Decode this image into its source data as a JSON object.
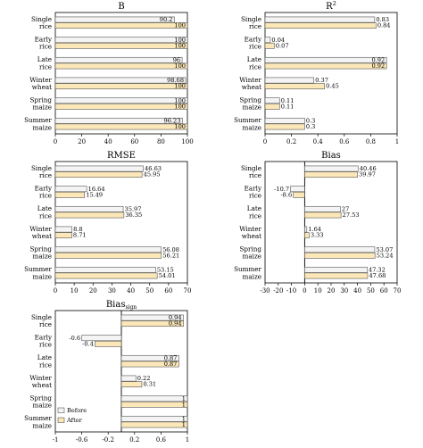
{
  "colors": {
    "before": "#f4f4f4",
    "after": "#fbe7b8",
    "stroke": "#555555"
  },
  "legend": {
    "before": "Before",
    "after": "After"
  },
  "chart_data": [
    {
      "type": "bar",
      "orientation": "horizontal",
      "title": "B",
      "title_sub": "",
      "categories": [
        "Single rice",
        "Early rice",
        "Late rice",
        "Winter wheat",
        "Spring maize",
        "Summer maize"
      ],
      "cat_lines": [
        [
          "Single",
          "rice"
        ],
        [
          "Early",
          "rice"
        ],
        [
          "Late",
          "rice"
        ],
        [
          "Winter",
          "wheat"
        ],
        [
          "Spring",
          "maize"
        ],
        [
          "Summer",
          "maize"
        ]
      ],
      "xlim": [
        0,
        100
      ],
      "xticks": [
        0,
        20,
        40,
        60,
        80,
        100
      ],
      "series": [
        {
          "name": "Before",
          "values": [
            90.2,
            100,
            96,
            98.68,
            100,
            96.23
          ],
          "labels": [
            "90.2",
            "100",
            "96",
            "98.68",
            "100",
            "96.23"
          ]
        },
        {
          "name": "After",
          "values": [
            100,
            100,
            100,
            100,
            100,
            100
          ],
          "labels": [
            "100",
            "100",
            "100",
            "100",
            "100",
            "100"
          ]
        }
      ]
    },
    {
      "type": "bar",
      "orientation": "horizontal",
      "title": "R",
      "title_sup": "2",
      "title_sub": "",
      "categories": [
        "Single rice",
        "Early rice",
        "Late rice",
        "Winter wheat",
        "Spring maize",
        "Summer maize"
      ],
      "cat_lines": [
        [
          "Single",
          "rice"
        ],
        [
          "Early",
          "rice"
        ],
        [
          "Late",
          "rice"
        ],
        [
          "Winter",
          "wheat"
        ],
        [
          "Spring",
          "maize"
        ],
        [
          "Summer",
          "maize"
        ]
      ],
      "xlim": [
        0,
        1
      ],
      "xticks": [
        0,
        0.2,
        0.4,
        0.6,
        0.8,
        1
      ],
      "xtick_labels": [
        "0",
        "0.2",
        "0.4",
        "0.6",
        "0.8",
        "1"
      ],
      "series": [
        {
          "name": "Before",
          "values": [
            0.83,
            0.04,
            0.92,
            0.37,
            0.11,
            0.3
          ],
          "labels": [
            "0.83",
            "0.04",
            "0.92",
            "0.37",
            "0.11",
            "0.3"
          ]
        },
        {
          "name": "After",
          "values": [
            0.84,
            0.07,
            0.92,
            0.45,
            0.11,
            0.3
          ],
          "labels": [
            "0.84",
            "0.07",
            "0.92",
            "0.45",
            "0.11",
            "0.3"
          ]
        }
      ]
    },
    {
      "type": "bar",
      "orientation": "horizontal",
      "title": "RMSE",
      "title_sub": "",
      "categories": [
        "Single rice",
        "Early rice",
        "Late rice",
        "Winter wheat",
        "Spring maize",
        "Summer maize"
      ],
      "cat_lines": [
        [
          "Single",
          "rice"
        ],
        [
          "Early",
          "rice"
        ],
        [
          "Late",
          "rice"
        ],
        [
          "Winter",
          "wheat"
        ],
        [
          "Spring",
          "maize"
        ],
        [
          "Summer",
          "maize"
        ]
      ],
      "xlim": [
        0,
        70
      ],
      "xticks": [
        0,
        10,
        20,
        30,
        40,
        50,
        60,
        70
      ],
      "series": [
        {
          "name": "Before",
          "values": [
            46.63,
            16.64,
            35.97,
            8.8,
            56.08,
            53.15
          ],
          "labels": [
            "46.63",
            "16.64",
            "35.97",
            "8.8",
            "56.08",
            "53.15"
          ]
        },
        {
          "name": "After",
          "values": [
            45.95,
            15.49,
            36.35,
            8.71,
            56.21,
            54.01
          ],
          "labels": [
            "45.95",
            "15.49",
            "36.35",
            "8.71",
            "56.21",
            "54.01"
          ]
        }
      ]
    },
    {
      "type": "bar",
      "orientation": "horizontal",
      "title": "Bias",
      "title_sub": "",
      "categories": [
        "Single rice",
        "Early rice",
        "Late rice",
        "Winter wheat",
        "Spring maize",
        "Summer maize"
      ],
      "cat_lines": [
        [
          "Single",
          "rice"
        ],
        [
          "Early",
          "rice"
        ],
        [
          "Late",
          "rice"
        ],
        [
          "Winter",
          "wheat"
        ],
        [
          "Spring",
          "maize"
        ],
        [
          "Summer",
          "maize"
        ]
      ],
      "xlim": [
        -30,
        70
      ],
      "xticks": [
        -30,
        -20,
        -10,
        0,
        10,
        20,
        30,
        40,
        50,
        60,
        70
      ],
      "series": [
        {
          "name": "Before",
          "values": [
            40.46,
            -10.7,
            27,
            1.64,
            53.07,
            47.32
          ],
          "labels": [
            "40.46",
            "-10.7",
            "27",
            "1.64",
            "53.07",
            "47.32"
          ]
        },
        {
          "name": "After",
          "values": [
            39.97,
            -8.6,
            27.53,
            3.33,
            53.24,
            47.68
          ],
          "labels": [
            "39.97",
            "-8.6",
            "27.53",
            "3.33",
            "53.24",
            "47.68"
          ]
        }
      ]
    },
    {
      "type": "bar",
      "orientation": "horizontal",
      "title": "Bias",
      "title_sub": "sign",
      "categories": [
        "Single rice",
        "Early rice",
        "Late rice",
        "Winter wheat",
        "Spring maize",
        "Summer maize"
      ],
      "cat_lines": [
        [
          "Single",
          "rice"
        ],
        [
          "Early",
          "rice"
        ],
        [
          "Late",
          "rice"
        ],
        [
          "Winter",
          "wheat"
        ],
        [
          "Spring",
          "maize"
        ],
        [
          "Summer",
          "maize"
        ]
      ],
      "xlim": [
        -1,
        1
      ],
      "xticks": [
        -1,
        -0.6,
        -0.2,
        0.2,
        0.6,
        1
      ],
      "xtick_labels": [
        "-1",
        "-0.6",
        "-0.2",
        "0.2",
        "0.6",
        "1"
      ],
      "series": [
        {
          "name": "Before",
          "values": [
            0.94,
            -0.6,
            0.87,
            0.22,
            1,
            1
          ],
          "labels": [
            "0.94",
            "-0.6",
            "0.87",
            "0.22",
            "1",
            "1"
          ]
        },
        {
          "name": "After",
          "values": [
            0.94,
            -0.4,
            0.87,
            0.31,
            1,
            1
          ],
          "labels": [
            "0.94",
            "-0.4",
            "0.87",
            "0.31",
            "1",
            "1"
          ]
        }
      ],
      "legend": "bottom-left"
    }
  ]
}
